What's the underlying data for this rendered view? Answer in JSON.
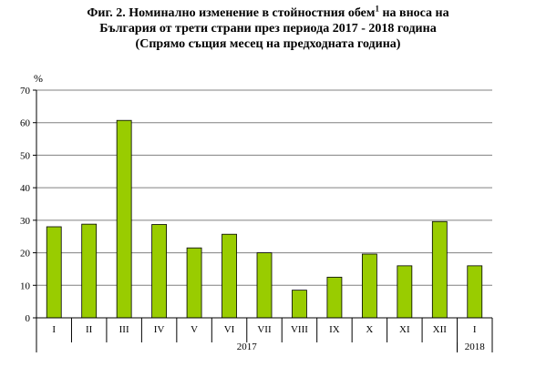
{
  "title": {
    "line1_prefix": "Фиг. 2. Номинално изменение в стойностния обем",
    "line1_sup": "1",
    "line1_suffix": " на вноса на",
    "line2": "България от трети страни през периода 2017 - 2018 година",
    "line3": "(Спрямо същия месец на предходната година)"
  },
  "chart_data": {
    "type": "bar",
    "ylabel": "%",
    "ylim": [
      0,
      70
    ],
    "yticks": [
      0,
      10,
      20,
      30,
      40,
      50,
      60,
      70
    ],
    "grid": true,
    "categories": [
      "I",
      "II",
      "III",
      "IV",
      "V",
      "VI",
      "VII",
      "VIII",
      "IX",
      "X",
      "XI",
      "XII",
      "I"
    ],
    "values": [
      28.0,
      28.8,
      60.7,
      28.7,
      21.5,
      25.7,
      20.0,
      8.5,
      12.5,
      19.6,
      16.0,
      29.6,
      16.0
    ],
    "groups": [
      {
        "label": "2017",
        "count": 12
      },
      {
        "label": "2018",
        "count": 1
      }
    ],
    "bar_color": "#99cc00",
    "bar_border_color": "#000000"
  }
}
